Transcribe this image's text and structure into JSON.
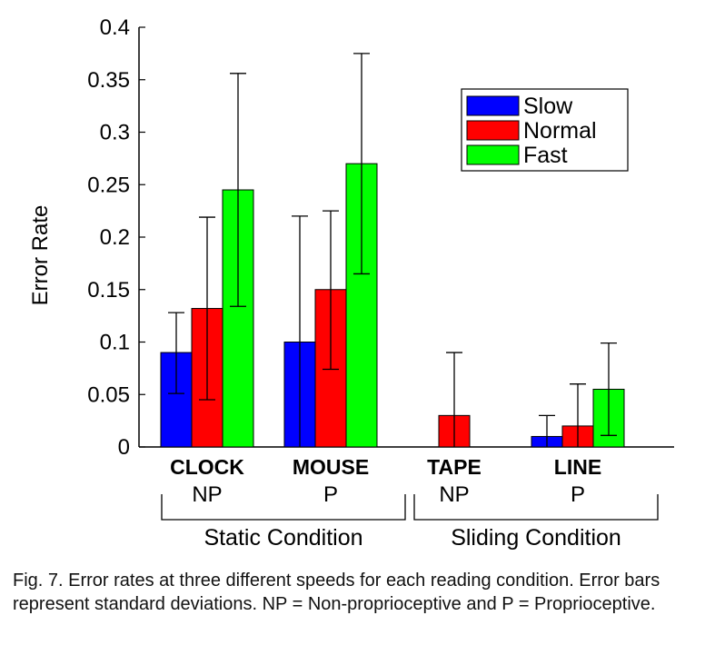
{
  "chart_data": {
    "type": "bar",
    "ylabel": "Error Rate",
    "ylim": [
      0,
      0.4
    ],
    "yticks": [
      "0",
      "0.05",
      "0.1",
      "0.15",
      "0.2",
      "0.25",
      "0.3",
      "0.35",
      "0.4"
    ],
    "categories": [
      "CLOCK",
      "MOUSE",
      "TAPE",
      "LINE"
    ],
    "category_sublabels": [
      "NP",
      "P",
      "NP",
      "P"
    ],
    "groups": [
      {
        "label": "Static Condition",
        "categories": [
          "CLOCK",
          "MOUSE"
        ]
      },
      {
        "label": "Sliding Condition",
        "categories": [
          "TAPE",
          "LINE"
        ]
      }
    ],
    "legend_position": "top-right",
    "series": [
      {
        "name": "Slow",
        "color": "#0000ff",
        "values": [
          0.09,
          0.1,
          0.0,
          0.01
        ],
        "error_upper": [
          0.128,
          0.22,
          null,
          0.03
        ],
        "error_lower": [
          0.051,
          0.0,
          null,
          0.0
        ]
      },
      {
        "name": "Normal",
        "color": "#ff0000",
        "values": [
          0.132,
          0.15,
          0.03,
          0.02
        ],
        "error_upper": [
          0.219,
          0.225,
          0.09,
          0.06
        ],
        "error_lower": [
          0.045,
          0.074,
          0.0,
          0.0
        ]
      },
      {
        "name": "Fast",
        "color": "#00ff00",
        "values": [
          0.245,
          0.27,
          0.0,
          0.055
        ],
        "error_upper": [
          0.356,
          0.375,
          null,
          0.099
        ],
        "error_lower": [
          0.134,
          0.165,
          null,
          0.011
        ]
      }
    ]
  },
  "caption": {
    "text": "Fig. 7. Error rates at three different speeds for each reading condition. Error bars represent standard deviations. NP = Non-proprioceptive and P = Proprioceptive."
  }
}
